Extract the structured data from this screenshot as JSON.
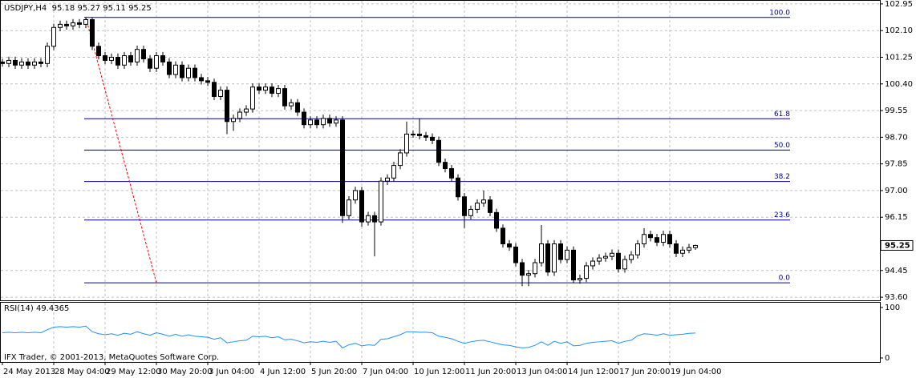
{
  "chart_data": {
    "type": "candlestick",
    "title": "USDJPY,H4  95.18 95.27 95.11 95.25",
    "footer": "IFX Trader, © 2001-2013, MetaQuotes Software Corp.",
    "categories": [
      "24 May 2013",
      null,
      null,
      null,
      null,
      null,
      null,
      null,
      "28 May 04:00",
      null,
      null,
      null,
      null,
      null,
      null,
      null,
      "29 May 12:00",
      null,
      null,
      null,
      null,
      null,
      null,
      null,
      "30 May 20:00",
      null,
      null,
      null,
      null,
      null,
      null,
      null,
      "3 Jun 04:00",
      null,
      null,
      null,
      null,
      null,
      null,
      null,
      "4 Jun 12:00",
      null,
      null,
      null,
      null,
      null,
      null,
      null,
      "5 Jun 20:00",
      null,
      null,
      null,
      null,
      null,
      null,
      null,
      "7 Jun 04:00",
      null,
      null,
      null,
      null,
      null,
      null,
      null,
      "10 Jun 12:00",
      null,
      null,
      null,
      null,
      null,
      null,
      null,
      "11 Jun 20:00",
      null,
      null,
      null,
      null,
      null,
      null,
      null,
      "13 Jun 04:00",
      null,
      null,
      null,
      null,
      null,
      null,
      null,
      "14 Jun 12:00",
      null,
      null,
      null,
      null,
      null,
      null,
      null,
      "17 Jun 20:00",
      null,
      null,
      null,
      null,
      null,
      null,
      null,
      "19 Jun 04:00",
      null,
      null,
      null,
      null
    ],
    "candles": [
      [
        101.1,
        101.2,
        100.95,
        101.05
      ],
      [
        101.05,
        101.27,
        100.93,
        101.15
      ],
      [
        101.15,
        101.27,
        100.88,
        101.0
      ],
      [
        101.0,
        101.22,
        100.88,
        101.1
      ],
      [
        101.1,
        101.22,
        100.88,
        101.0
      ],
      [
        101.0,
        101.22,
        100.88,
        101.1
      ],
      [
        101.1,
        101.22,
        100.93,
        101.05
      ],
      [
        101.05,
        101.72,
        100.93,
        101.6
      ],
      [
        101.6,
        102.32,
        101.48,
        102.2
      ],
      [
        102.2,
        102.42,
        102.08,
        102.3
      ],
      [
        102.3,
        102.42,
        102.13,
        102.25
      ],
      [
        102.25,
        102.47,
        102.13,
        102.35
      ],
      [
        102.35,
        102.47,
        102.18,
        102.3
      ],
      [
        102.3,
        102.52,
        102.18,
        102.45
      ],
      [
        102.45,
        102.52,
        101.48,
        101.6
      ],
      [
        101.6,
        101.72,
        101.18,
        101.3
      ],
      [
        101.3,
        101.42,
        101.03,
        101.15
      ],
      [
        101.15,
        101.37,
        101.03,
        101.25
      ],
      [
        101.25,
        101.37,
        100.88,
        101.0
      ],
      [
        101.0,
        101.42,
        100.88,
        101.3
      ],
      [
        101.3,
        101.42,
        100.98,
        101.1
      ],
      [
        101.1,
        101.62,
        100.98,
        101.5
      ],
      [
        101.5,
        101.62,
        101.08,
        101.2
      ],
      [
        101.2,
        101.32,
        100.78,
        100.9
      ],
      [
        100.9,
        101.42,
        100.78,
        101.3
      ],
      [
        101.3,
        101.42,
        100.98,
        101.1
      ],
      [
        101.1,
        101.22,
        100.58,
        100.7
      ],
      [
        100.7,
        101.12,
        100.58,
        101.0
      ],
      [
        101.0,
        101.12,
        100.48,
        100.6
      ],
      [
        100.6,
        101.02,
        100.48,
        100.9
      ],
      [
        100.9,
        101.02,
        100.48,
        100.6
      ],
      [
        100.6,
        100.72,
        100.38,
        100.5
      ],
      [
        100.5,
        100.62,
        100.33,
        100.45
      ],
      [
        100.45,
        100.57,
        99.88,
        100.0
      ],
      [
        100.0,
        100.32,
        99.88,
        100.2
      ],
      [
        100.2,
        100.32,
        98.8,
        99.2
      ],
      [
        99.2,
        99.42,
        98.9,
        99.3
      ],
      [
        99.3,
        99.62,
        99.18,
        99.5
      ],
      [
        99.5,
        99.72,
        99.38,
        99.6
      ],
      [
        99.6,
        100.42,
        99.48,
        100.3
      ],
      [
        100.3,
        100.42,
        100.08,
        100.2
      ],
      [
        100.2,
        100.42,
        100.08,
        100.3
      ],
      [
        100.3,
        100.42,
        99.98,
        100.1
      ],
      [
        100.1,
        100.37,
        99.98,
        100.25
      ],
      [
        100.25,
        100.37,
        99.58,
        99.7
      ],
      [
        99.7,
        99.92,
        99.58,
        99.8
      ],
      [
        99.8,
        99.92,
        99.38,
        99.5
      ],
      [
        99.5,
        99.62,
        98.98,
        99.1
      ],
      [
        99.1,
        99.37,
        98.98,
        99.25
      ],
      [
        99.25,
        99.37,
        98.98,
        99.1
      ],
      [
        99.1,
        99.42,
        98.98,
        99.3
      ],
      [
        99.3,
        99.42,
        99.03,
        99.15
      ],
      [
        99.15,
        99.37,
        99.03,
        99.25
      ],
      [
        99.25,
        99.37,
        95.97,
        96.2
      ],
      [
        96.2,
        96.82,
        96.08,
        96.7
      ],
      [
        96.7,
        97.12,
        96.58,
        97.0
      ],
      [
        97.0,
        97.12,
        95.85,
        96.0
      ],
      [
        96.0,
        96.32,
        95.88,
        96.2
      ],
      [
        96.2,
        96.32,
        94.9,
        96.0
      ],
      [
        96.0,
        97.42,
        95.88,
        97.3
      ],
      [
        97.3,
        97.52,
        97.18,
        97.4
      ],
      [
        97.4,
        97.92,
        97.28,
        97.8
      ],
      [
        97.8,
        98.32,
        97.68,
        98.2
      ],
      [
        98.2,
        99.2,
        98.08,
        98.8
      ],
      [
        98.8,
        98.92,
        98.68,
        98.8
      ],
      [
        98.8,
        99.3,
        98.63,
        98.75
      ],
      [
        98.75,
        98.87,
        98.58,
        98.7
      ],
      [
        98.7,
        98.82,
        98.48,
        98.6
      ],
      [
        98.6,
        98.72,
        97.78,
        97.9
      ],
      [
        97.9,
        98.02,
        97.58,
        97.7
      ],
      [
        97.7,
        97.82,
        97.28,
        97.4
      ],
      [
        97.4,
        97.52,
        96.68,
        96.8
      ],
      [
        96.8,
        96.92,
        95.8,
        96.2
      ],
      [
        96.2,
        96.52,
        96.08,
        96.4
      ],
      [
        96.4,
        96.72,
        96.28,
        96.6
      ],
      [
        96.6,
        97.0,
        96.48,
        96.7
      ],
      [
        96.7,
        96.82,
        96.18,
        96.3
      ],
      [
        96.3,
        96.42,
        95.68,
        95.8
      ],
      [
        95.8,
        95.92,
        95.18,
        95.3
      ],
      [
        95.3,
        95.42,
        95.08,
        95.2
      ],
      [
        95.2,
        95.32,
        94.58,
        94.7
      ],
      [
        94.7,
        94.82,
        93.95,
        94.3
      ],
      [
        94.3,
        94.47,
        93.95,
        94.35
      ],
      [
        94.35,
        94.82,
        94.23,
        94.7
      ],
      [
        94.7,
        95.9,
        94.58,
        95.3
      ],
      [
        95.3,
        95.42,
        94.28,
        94.4
      ],
      [
        94.4,
        95.42,
        94.28,
        95.3
      ],
      [
        95.3,
        95.42,
        94.68,
        94.8
      ],
      [
        94.8,
        95.22,
        94.68,
        95.1
      ],
      [
        95.1,
        95.22,
        94.05,
        94.15
      ],
      [
        94.15,
        94.32,
        94.03,
        94.2
      ],
      [
        94.2,
        94.72,
        94.08,
        94.6
      ],
      [
        94.6,
        94.87,
        94.48,
        94.75
      ],
      [
        94.75,
        94.97,
        94.63,
        94.85
      ],
      [
        94.85,
        95.02,
        94.73,
        94.9
      ],
      [
        94.9,
        95.12,
        94.78,
        95.0
      ],
      [
        95.0,
        95.12,
        94.38,
        94.5
      ],
      [
        94.5,
        94.92,
        94.38,
        94.8
      ],
      [
        94.8,
        95.07,
        94.68,
        94.95
      ],
      [
        94.95,
        95.42,
        94.83,
        95.3
      ],
      [
        95.3,
        95.8,
        95.18,
        95.6
      ],
      [
        95.6,
        95.72,
        95.38,
        95.5
      ],
      [
        95.5,
        95.62,
        95.23,
        95.35
      ],
      [
        95.35,
        95.72,
        95.23,
        95.6
      ],
      [
        95.6,
        95.72,
        95.18,
        95.3
      ],
      [
        95.3,
        95.42,
        94.88,
        95.0
      ],
      [
        95.0,
        95.22,
        94.88,
        95.1
      ],
      [
        95.1,
        95.3,
        95.0,
        95.18
      ],
      [
        95.18,
        95.27,
        95.11,
        95.25
      ]
    ],
    "ylim": [
      93.5,
      103.05
    ],
    "yticks": [
      102.95,
      {
        "value": 102.1,
        "label": "102.10"
      },
      101.25,
      {
        "value": 100.4,
        "label": "100.40"
      },
      99.55,
      {
        "value": 98.7,
        "label": "98.70"
      },
      97.85,
      {
        "value": 97.0,
        "label": "97.00"
      },
      96.15,
      94.45,
      {
        "value": 93.6,
        "label": "93.60"
      }
    ],
    "grid": true,
    "fib_color": "#00008b",
    "trend_color": "#ff0000",
    "fib_levels": [
      {
        "value": 102.52,
        "label": "100.0"
      },
      {
        "value": 99.29,
        "label": "61.8"
      },
      {
        "value": 98.29,
        "label": "50.0"
      },
      {
        "value": 97.29,
        "label": "38.2"
      },
      {
        "value": 96.06,
        "label": "23.6"
      },
      {
        "value": 94.06,
        "label": "0.0"
      }
    ],
    "rsi": {
      "title": "RSI(14) 49.4365",
      "color": "#1e90ff",
      "ylim": [
        -4.8,
        106.3
      ],
      "yticks": [
        0,
        100
      ],
      "values": [
        50,
        51,
        50,
        51,
        50,
        51,
        50,
        56,
        61,
        62,
        61,
        62,
        61,
        63,
        52,
        48,
        46,
        48,
        45,
        49,
        47,
        52,
        48,
        45,
        50,
        47,
        43,
        47,
        43,
        46,
        43,
        42,
        41,
        37,
        40,
        30,
        32,
        34,
        35,
        43,
        42,
        43,
        40,
        42,
        36,
        37,
        34,
        30,
        32,
        31,
        33,
        31,
        33,
        20,
        26,
        29,
        24,
        26,
        25,
        37,
        38,
        42,
        46,
        52,
        52,
        51,
        51,
        50,
        43,
        41,
        38,
        33,
        29,
        32,
        34,
        35,
        32,
        29,
        26,
        25,
        22,
        20,
        21,
        25,
        32,
        25,
        33,
        29,
        32,
        24,
        25,
        29,
        31,
        32,
        33,
        34,
        29,
        33,
        35,
        44,
        48,
        47,
        45,
        48,
        45,
        46,
        47,
        48.8,
        49.4365
      ]
    }
  }
}
